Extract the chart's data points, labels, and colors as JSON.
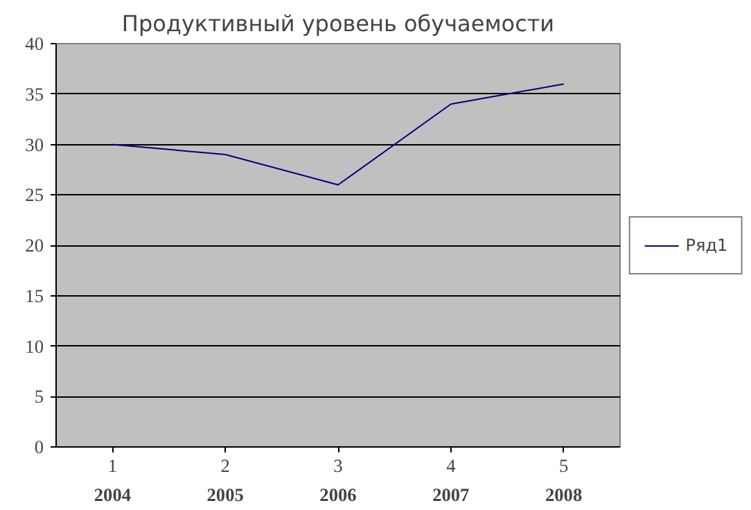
{
  "chart_data": {
    "type": "line",
    "title": "Продуктивный уровень обучаемости",
    "categories": [
      "1",
      "2",
      "3",
      "4",
      "5"
    ],
    "series": [
      {
        "name": "Ряд1",
        "color": "#000080",
        "values": [
          30,
          29,
          26,
          34,
          36
        ]
      }
    ],
    "annotations": [
      "2004",
      "2005",
      "2006",
      "2007",
      "2008"
    ],
    "ylim": [
      0,
      40
    ],
    "yticks": [
      0,
      5,
      10,
      15,
      20,
      25,
      30,
      35,
      40
    ],
    "grid": "y",
    "legend": "right",
    "marker": "none",
    "line_style": "solid"
  }
}
